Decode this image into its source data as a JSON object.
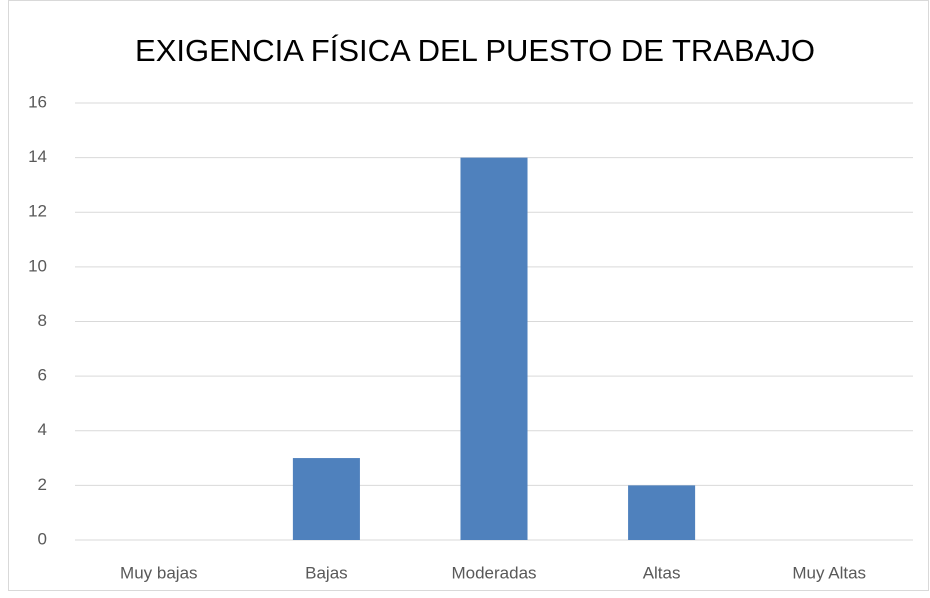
{
  "chart_data": {
    "type": "bar",
    "title": "EXIGENCIA FÍSICA DEL PUESTO DE TRABAJO",
    "categories": [
      "Muy bajas",
      "Bajas",
      "Moderadas",
      "Altas",
      "Muy Altas"
    ],
    "values": [
      0,
      3,
      14,
      2,
      0
    ],
    "color": "#4f81bd",
    "ylim": [
      0,
      16
    ],
    "yticks": [
      0,
      2,
      4,
      6,
      8,
      10,
      12,
      14,
      16
    ],
    "grid": true
  }
}
